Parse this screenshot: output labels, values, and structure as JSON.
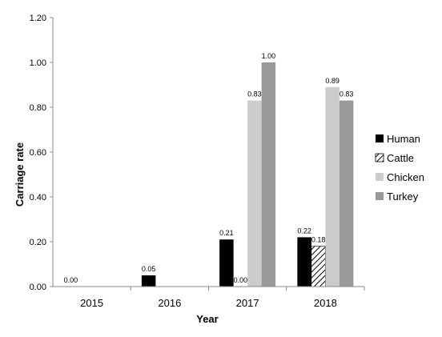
{
  "chart_data": {
    "type": "bar",
    "title": "",
    "xlabel": "Year",
    "ylabel": "Carriage rate",
    "categories": [
      "2015",
      "2016",
      "2017",
      "2018"
    ],
    "ylim": [
      0,
      1.2
    ],
    "yticks": [
      "0.00",
      "0.20",
      "0.40",
      "0.60",
      "0.80",
      "1.00",
      "1.20"
    ],
    "legend_position": "right",
    "series": [
      {
        "name": "Human",
        "color": "#000000",
        "pattern": "solid",
        "values": [
          0.0,
          0.05,
          0.21,
          0.22
        ],
        "labels": [
          "0.00",
          "0.05",
          "0.21",
          "0.22"
        ]
      },
      {
        "name": "Cattle",
        "color": "#000000",
        "pattern": "hatched",
        "values": [
          null,
          null,
          0.0,
          0.18
        ],
        "labels": [
          null,
          null,
          "0.00",
          "0.18"
        ]
      },
      {
        "name": "Chicken",
        "color": "#cccccc",
        "pattern": "solid",
        "values": [
          null,
          null,
          0.83,
          0.89
        ],
        "labels": [
          null,
          null,
          "0.83",
          "0.89"
        ]
      },
      {
        "name": "Turkey",
        "color": "#999999",
        "pattern": "solid",
        "values": [
          null,
          null,
          1.0,
          0.83
        ],
        "labels": [
          null,
          null,
          "1.00",
          "0.83"
        ]
      }
    ]
  }
}
